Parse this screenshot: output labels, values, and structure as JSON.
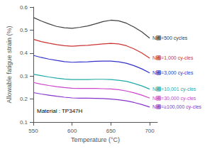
{
  "chart_data": {
    "type": "line",
    "xlabel": "Temperature (°C)",
    "ylabel": "Allowable fatigue strain (%)",
    "annotation": "Material : TP347H",
    "xlim": [
      550,
      710
    ],
    "ylim": [
      0.1,
      0.6
    ],
    "xticks": [
      550,
      600,
      650,
      700
    ],
    "yticks": [
      0.1,
      0.2,
      0.3,
      0.4,
      0.5,
      0.6
    ],
    "grid": false,
    "x": [
      550,
      560,
      570,
      580,
      590,
      600,
      610,
      620,
      630,
      640,
      650,
      660,
      670,
      680,
      690,
      700
    ],
    "series": [
      {
        "name": "N₟=500 cycles",
        "color": "#404040",
        "values": [
          0.555,
          0.54,
          0.527,
          0.516,
          0.51,
          0.508,
          0.512,
          0.518,
          0.527,
          0.537,
          0.543,
          0.54,
          0.53,
          0.513,
          0.492,
          0.465
        ]
      },
      {
        "name": "N₟=1,000 cy-cles",
        "color": "#cc3333",
        "values": [
          0.46,
          0.45,
          0.443,
          0.437,
          0.432,
          0.43,
          0.432,
          0.434,
          0.437,
          0.44,
          0.442,
          0.44,
          0.432,
          0.418,
          0.4,
          0.378
        ]
      },
      {
        "name": "N₟=3,000 cy-cles",
        "color": "#3333cc",
        "values": [
          0.39,
          0.381,
          0.374,
          0.368,
          0.363,
          0.36,
          0.361,
          0.362,
          0.364,
          0.365,
          0.365,
          0.362,
          0.356,
          0.345,
          0.331,
          0.314
        ]
      },
      {
        "name": "N₟=10,001 cy-cles",
        "color": "#22aaaa",
        "values": [
          0.308,
          0.302,
          0.296,
          0.291,
          0.287,
          0.285,
          0.285,
          0.285,
          0.286,
          0.286,
          0.285,
          0.282,
          0.277,
          0.268,
          0.257,
          0.243
        ]
      },
      {
        "name": "N₟=30,000 cy-cles",
        "color": "#cc44cc",
        "values": [
          0.272,
          0.265,
          0.259,
          0.254,
          0.25,
          0.247,
          0.246,
          0.246,
          0.246,
          0.245,
          0.244,
          0.241,
          0.235,
          0.227,
          0.217,
          0.204
        ]
      },
      {
        "name": "N₟=≥100,000 cy-cles",
        "color": "#8833cc",
        "values": [
          0.228,
          0.222,
          0.217,
          0.212,
          0.208,
          0.205,
          0.204,
          0.204,
          0.203,
          0.202,
          0.2,
          0.197,
          0.192,
          0.185,
          0.176,
          0.165
        ]
      }
    ]
  }
}
